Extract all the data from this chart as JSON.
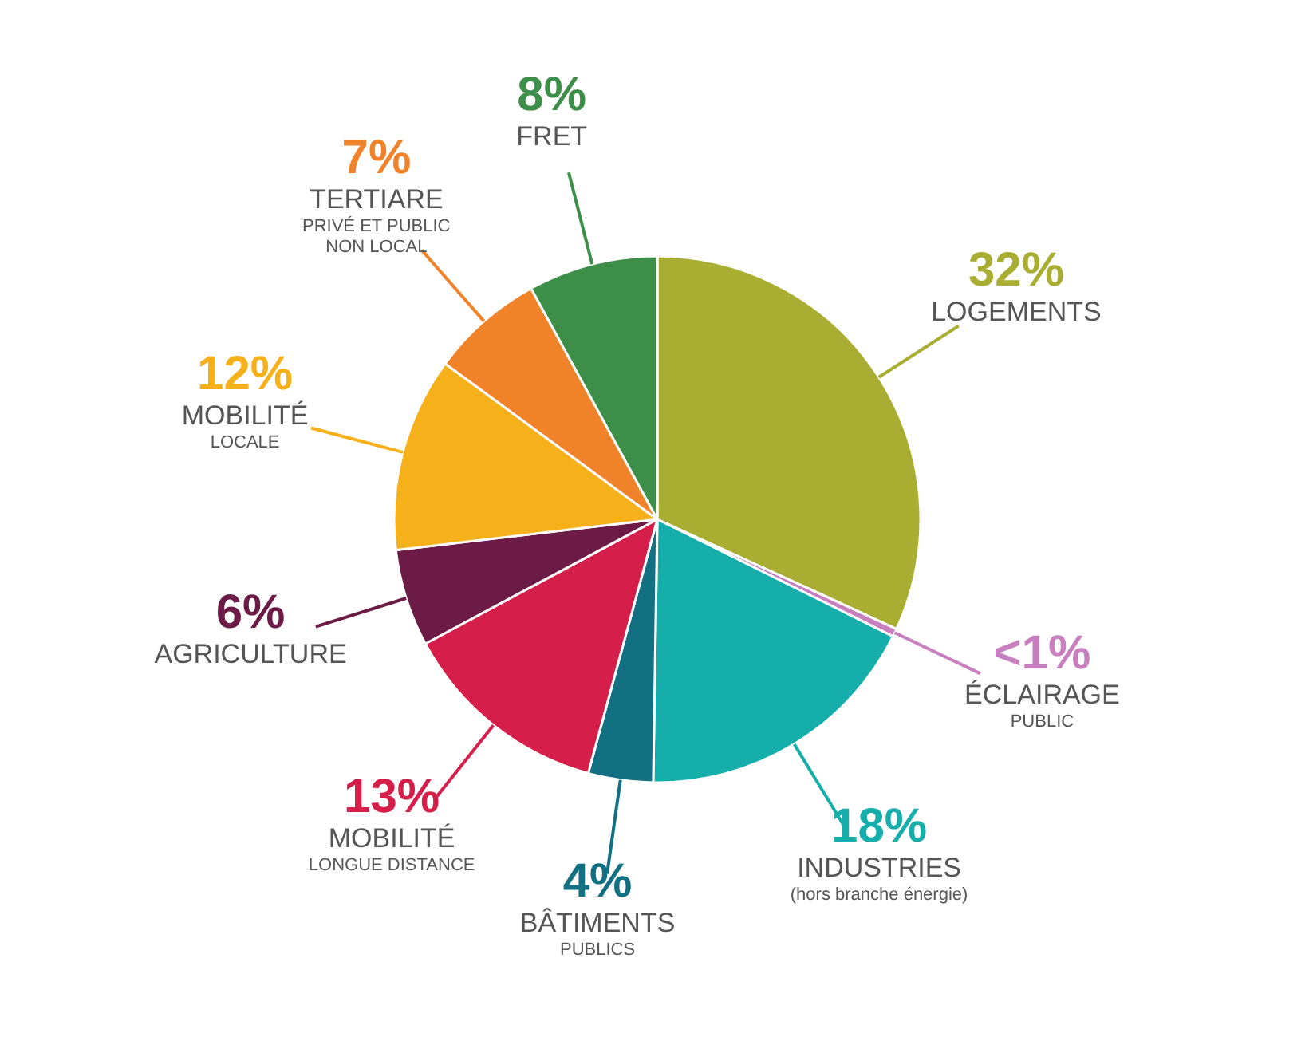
{
  "chart_data": {
    "type": "pie",
    "categories": [
      "LOGEMENTS",
      "ÉCLAIRAGE\nPUBLIC",
      "INDUSTRIES\n(hors branche énergie)",
      "BÂTIMENTS\nPUBLICS",
      "MOBILITÉ\nLONGUE DISTANCE",
      "AGRICULTURE",
      "MOBILITÉ\nLOCALE",
      "TERTIARE\nPRIVÉ ET PUBLIC\nNON LOCAL",
      "FRET"
    ],
    "values": [
      32,
      0.5,
      18,
      4,
      13,
      6,
      12,
      7,
      8
    ],
    "value_labels": [
      "32%",
      "<1%",
      "18%",
      "4%",
      "13%",
      "6%",
      "12%",
      "7%",
      "8%"
    ],
    "colors": [
      "#a9ad32",
      "#c77fc0",
      "#16aeab",
      "#136f82",
      "#d51e49",
      "#6b1b46",
      "#f6b01a",
      "#f0832a",
      "#3d8e48"
    ]
  }
}
